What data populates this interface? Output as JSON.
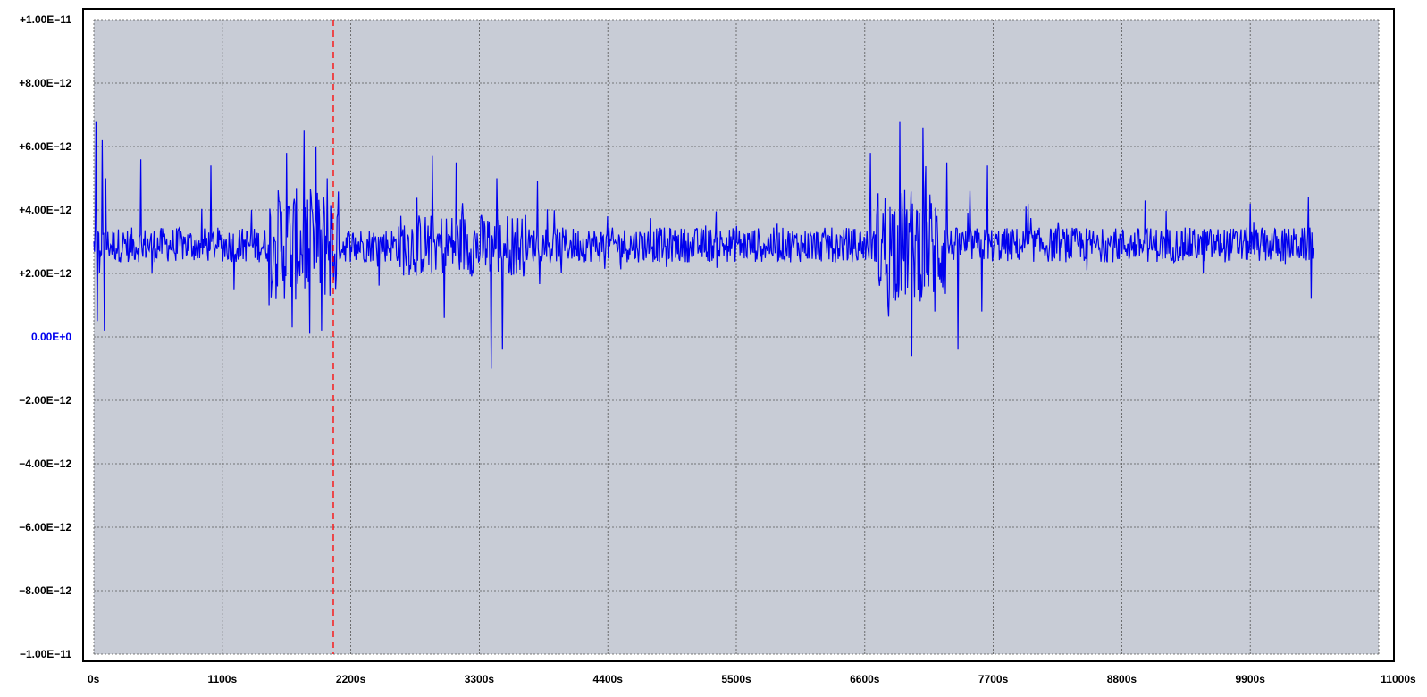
{
  "chart_data": {
    "type": "line",
    "title": "",
    "xlabel": "",
    "ylabel": "",
    "xlim": [
      0,
      11000
    ],
    "ylim": [
      -1e-11,
      1e-11
    ],
    "x_ticks": [
      0,
      1100,
      2200,
      3300,
      4400,
      5500,
      6600,
      7700,
      8800,
      9900,
      11000
    ],
    "x_tick_labels": [
      "0s",
      "1100s",
      "2200s",
      "3300s",
      "4400s",
      "5500s",
      "6600s",
      "7700s",
      "8800s",
      "9900s",
      "11000s"
    ],
    "y_ticks": [
      1e-11,
      8e-12,
      6e-12,
      4e-12,
      2e-12,
      0,
      -2e-12,
      -4e-12,
      -6e-12,
      -8e-12,
      -1e-11
    ],
    "y_tick_labels": [
      "+1.00E−11",
      "+8.00E−12",
      "+6.00E−12",
      "+4.00E−12",
      "+2.00E−12",
      "0.00E+0",
      "−2.00E−12",
      "−4.00E−12",
      "−6.00E−12",
      "−8.00E−12",
      "−1.00E−11"
    ],
    "grid": true,
    "colors": {
      "plot_bg": "#c8ccd6",
      "line": "#0000ee",
      "marker": "#ff0000",
      "zero_label": "#0000ee"
    },
    "marker_x": 2050,
    "series": [
      {
        "values_x": [
          0,
          20,
          30,
          50,
          70,
          90,
          100,
          300,
          400,
          500,
          600,
          700,
          1000,
          1200,
          1350,
          1500,
          1650,
          1700,
          1800,
          1850,
          1900,
          1950,
          2000,
          2050,
          2300,
          2900,
          3000,
          3100,
          3300,
          3400,
          3450,
          3500,
          3600,
          3800,
          4000,
          4400,
          4900,
          5500,
          6200,
          6650,
          6800,
          6900,
          7000,
          7100,
          7200,
          7300,
          7400,
          7500,
          7600,
          7650,
          7700,
          8000,
          8500,
          9000,
          9500,
          9900,
          10200,
          10400,
          10420,
          10440
        ],
        "values_y": [
          3e-12,
          6.8e-12,
          5e-13,
          2e-12,
          6.2e-12,
          2e-13,
          5e-12,
          2.5e-12,
          5.6e-12,
          2e-12,
          3.2e-12,
          2.4e-12,
          5.4e-12,
          1.5e-12,
          4e-12,
          1e-12,
          5.8e-12,
          3e-13,
          6.5e-12,
          1e-13,
          6e-12,
          2e-13,
          5e-12,
          1.8e-12,
          3e-12,
          5.7e-12,
          6e-13,
          5.5e-12,
          2.4e-12,
          -1e-12,
          5e-12,
          -4e-13,
          3.1e-12,
          4.9e-12,
          2e-12,
          3.8e-12,
          2.2e-12,
          3.5e-12,
          2.6e-12,
          5.8e-12,
          1e-12,
          6.8e-12,
          -6e-13,
          6.6e-12,
          8e-13,
          5.5e-12,
          -4e-13,
          4.6e-12,
          8e-13,
          5.4e-12,
          2.5e-12,
          4.2e-12,
          2.1e-12,
          4.3e-12,
          2e-12,
          4.2e-12,
          2.3e-12,
          4.4e-12,
          1.2e-12,
          2.8e-12
        ]
      }
    ]
  }
}
